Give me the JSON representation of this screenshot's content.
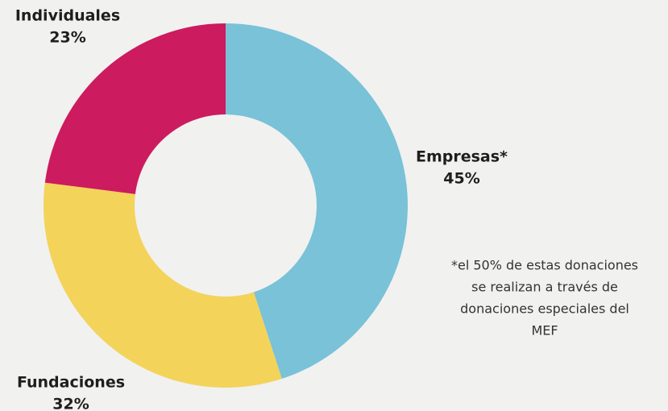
{
  "chart_data": {
    "type": "pie",
    "categories": [
      "Empresas*",
      "Fundaciones",
      "Individuales"
    ],
    "values": [
      45,
      32,
      23
    ],
    "value_labels": [
      "45%",
      "32%",
      "23%"
    ],
    "colors": [
      "#79c2d8",
      "#f3d35a",
      "#cc1b5f"
    ],
    "annotation": [
      "*el 50% de estas donaciones",
      "se realizan a través de",
      "donaciones especiales del",
      "MEF"
    ]
  }
}
